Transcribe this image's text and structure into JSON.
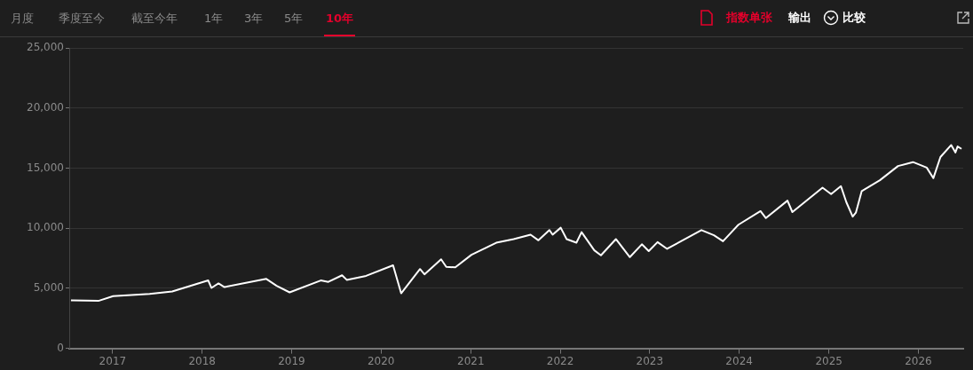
{
  "chart_data": {
    "type": "line",
    "annotations": [
      "月度",
      "季度至今",
      "截至今年",
      "1年",
      "3年",
      "5年",
      "10年",
      "指数单张",
      "输出",
      "比较"
    ],
    "xlim": [
      "2016-07-08",
      "2026-07-03"
    ],
    "xticks": [
      "2017",
      "2018",
      "2019",
      "2020",
      "2021",
      "2022",
      "2023",
      "2024",
      "2025",
      "2026"
    ],
    "ylim": [
      0,
      25000
    ],
    "yticks": [
      {
        "value": 0,
        "label": "0"
      },
      {
        "value": 5000,
        "label": "5,000"
      },
      {
        "value": 10000,
        "label": "10,000"
      },
      {
        "value": 15000,
        "label": "15,000"
      },
      {
        "value": 20000,
        "label": "20,000"
      },
      {
        "value": 25000,
        "label": "25,000"
      }
    ],
    "grid": "y",
    "legend": false,
    "marker": "none",
    "line_style": "solid",
    "series": [
      {
        "color": "#ffffff",
        "x": [
          "2016-07-15",
          "2016-11-04",
          "2017-01-03",
          "2017-06-01",
          "2017-09-01",
          "2018-01-26",
          "2018-02-08",
          "2018-03-09",
          "2018-04-02",
          "2018-09-20",
          "2018-11-01",
          "2018-12-24",
          "2019-04-30",
          "2019-05-31",
          "2019-07-26",
          "2019-08-14",
          "2019-11-01",
          "2020-02-19",
          "2020-03-23",
          "2020-06-08",
          "2020-06-26",
          "2020-09-02",
          "2020-09-23",
          "2020-10-30",
          "2021-01-04",
          "2021-04-15",
          "2021-06-25",
          "2021-09-02",
          "2021-10-04",
          "2021-11-18",
          "2021-12-01",
          "2022-01-03",
          "2022-01-27",
          "2022-03-08",
          "2022-03-29",
          "2022-05-20",
          "2022-06-16",
          "2022-08-16",
          "2022-10-12",
          "2022-11-30",
          "2022-12-28",
          "2023-02-02",
          "2023-03-13",
          "2023-07-31",
          "2023-09-20",
          "2023-10-27",
          "2023-12-29",
          "2024-03-28",
          "2024-04-19",
          "2024-07-16",
          "2024-08-05",
          "2024-12-06",
          "2025-01-10",
          "2025-02-19",
          "2025-03-13",
          "2025-04-08",
          "2025-04-21",
          "2025-05-15",
          "2025-07-28",
          "2025-10-10",
          "2025-12-10",
          "2026-02-04",
          "2026-03-03",
          "2026-04-01",
          "2026-05-15",
          "2026-06-01",
          "2026-06-10",
          "2026-06-26"
        ],
        "values": [
          4000,
          3950,
          4350,
          4530,
          4730,
          5650,
          5030,
          5400,
          5100,
          5780,
          5200,
          4660,
          5650,
          5530,
          6080,
          5700,
          6030,
          6910,
          4580,
          6600,
          6160,
          7410,
          6780,
          6740,
          7790,
          8790,
          9090,
          9460,
          8990,
          9840,
          9460,
          10040,
          9090,
          8790,
          9670,
          8160,
          7740,
          9090,
          7590,
          8660,
          8090,
          8840,
          8280,
          9840,
          9410,
          8910,
          10290,
          11420,
          10840,
          12290,
          11340,
          13370,
          12840,
          13500,
          12170,
          10960,
          11290,
          13090,
          13990,
          15170,
          15500,
          15040,
          14160,
          15920,
          16920,
          16300,
          16800,
          16600
        ]
      }
    ]
  }
}
